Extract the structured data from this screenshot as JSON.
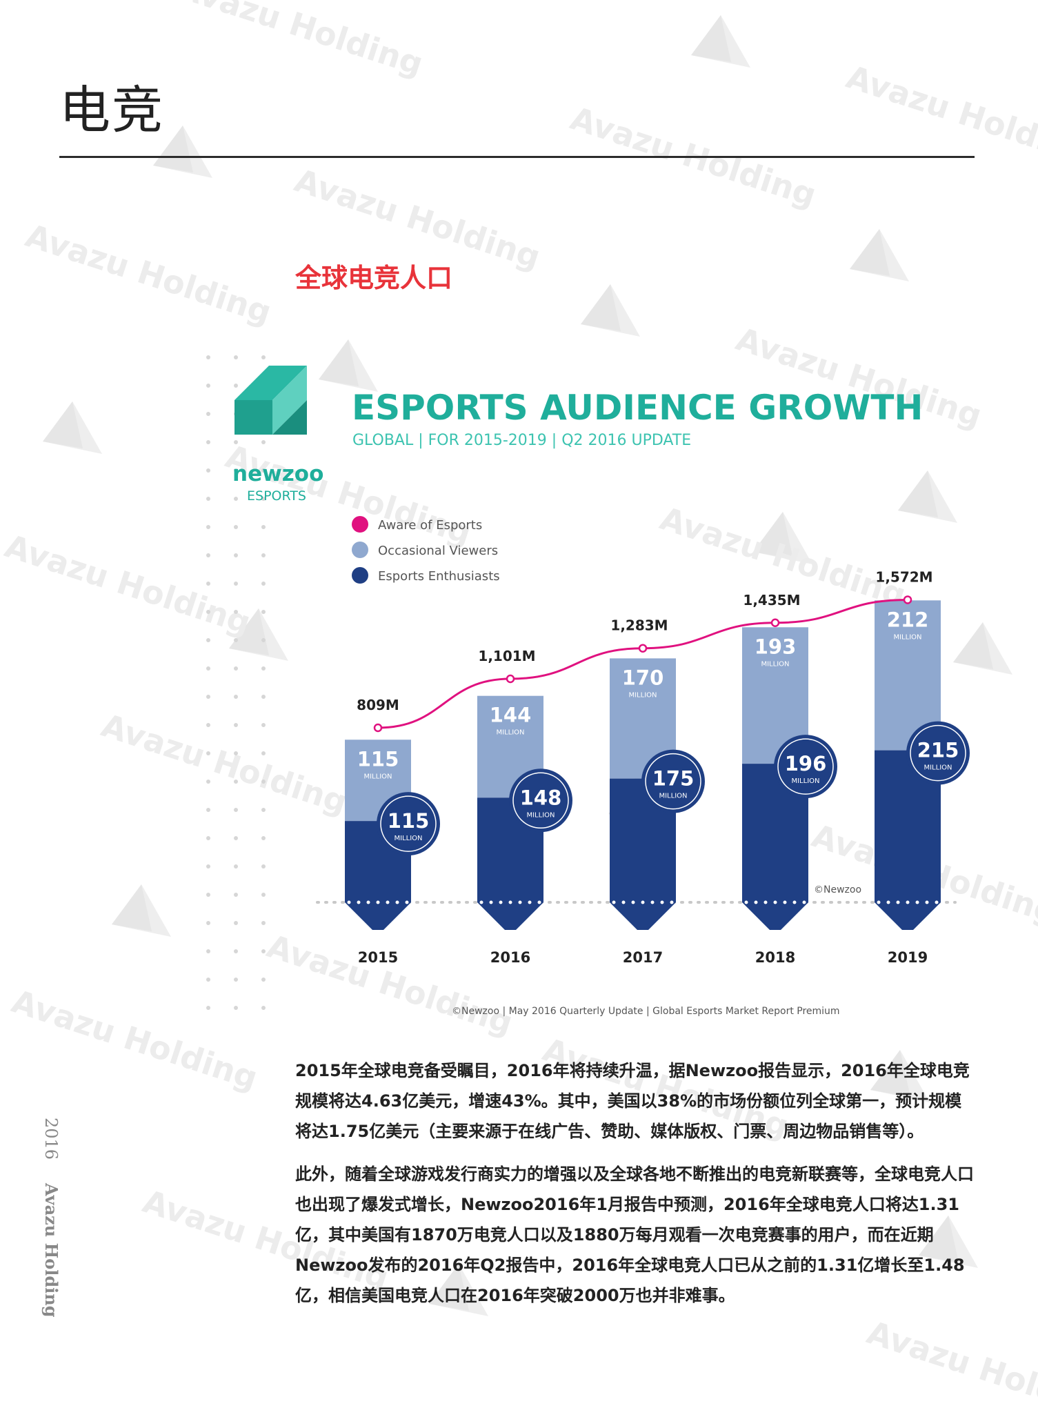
{
  "watermark": "Avazu Holding",
  "page": {
    "title": "电竞",
    "section_title": "全球电竞人口",
    "side_year": "2016",
    "side_brand": "Avazu Holding",
    "paragraphs": [
      "2015年全球电竞备受瞩目，2016年将持续升温，据Newzoo报告显示，2016年全球电竞规模将达4.63亿美元，增速43%。其中，美国以38%的市场份额位列全球第一，预计规模将达1.75亿美元（主要来源于在线广告、赞助、媒体版权、门票、周边物品销售等）。",
      "此外，随着全球游戏发行商实力的增强以及全球各地不断推出的电竞新联赛等，全球电竞人口也出现了爆发式增长，Newzoo2016年1月报告中预测，2016年全球电竞人口将达1.31亿，其中美国有1870万电竞人口以及1880万每月观看一次电竞赛事的用户，而在近期Newzoo发布的2016年Q2报告中，2016年全球电竞人口已从之前的1.31亿增长至1.48亿，相信美国电竞人口在2016年突破2000万也并非难事。"
    ]
  },
  "chart_data": {
    "type": "bar",
    "title": "ESPORTS AUDIENCE GROWTH",
    "subtitle": "GLOBAL | FOR 2015-2019 | Q2 2016 UPDATE",
    "brand": {
      "name": "newzoo",
      "sub": "ESPORTS"
    },
    "categories": [
      "2015",
      "2016",
      "2017",
      "2018",
      "2019"
    ],
    "series": [
      {
        "name": "Aware of Esports",
        "type": "line",
        "color": "#e0117f",
        "values": [
          809,
          1101,
          1283,
          1435,
          1572
        ],
        "labels": [
          "809M",
          "1,101M",
          "1,283M",
          "1,435M",
          "1,572M"
        ]
      },
      {
        "name": "Occasional Viewers",
        "type": "bar",
        "color": "#8fa8cf",
        "values": [
          115,
          144,
          170,
          193,
          212
        ]
      },
      {
        "name": "Esports Enthusiasts",
        "type": "bar",
        "color": "#1f3f84",
        "values": [
          115,
          148,
          175,
          196,
          215
        ]
      }
    ],
    "unit_label": "MILLION",
    "legend_position": "top-left",
    "copyright": "©Newzoo",
    "source": "©Newzoo | May 2016 Quarterly Update | Global Esports Market Report Premium",
    "colors": {
      "teal": "#1fae9b",
      "teal_light": "#3cc3b0",
      "gray_text": "#555555"
    }
  }
}
